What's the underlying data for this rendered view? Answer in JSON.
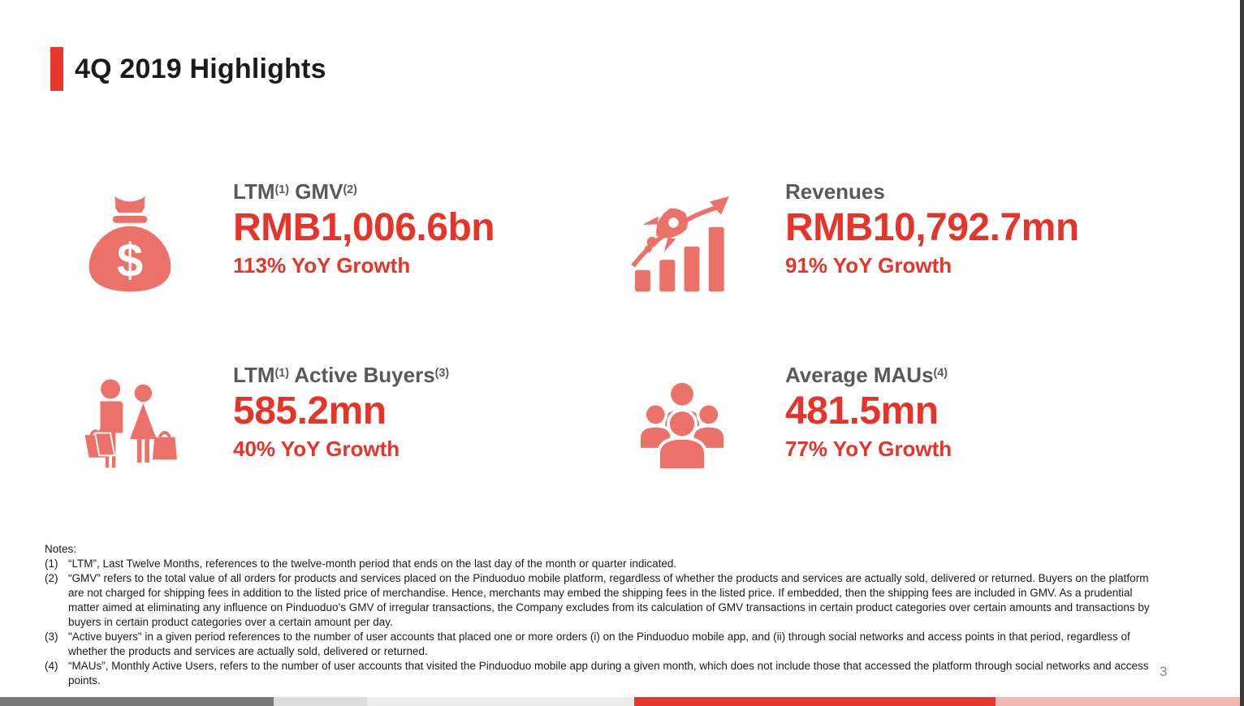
{
  "slide": {
    "title": "4Q 2019 Highlights",
    "page_number": "3"
  },
  "colors": {
    "accent_red": "#e8372c",
    "metric_red": "#e5352b",
    "icon_salmon": "#ec7168",
    "label_gray": "#595959",
    "footer_bar_segments": [
      "#787878",
      "#dcdcdc",
      "#ececec",
      "#e8372c",
      "#f1b7b2"
    ]
  },
  "cards": [
    {
      "icon": "money-bag-icon",
      "label_parts": [
        {
          "t": "LTM"
        },
        {
          "s": "(1)"
        },
        {
          "t": " GMV"
        },
        {
          "s": "(2)"
        }
      ],
      "value": "RMB1,006.6bn",
      "growth": "113% YoY Growth"
    },
    {
      "icon": "rocket-growth-chart-icon",
      "label_parts": [
        {
          "t": "Revenues"
        }
      ],
      "value": "RMB10,792.7mn",
      "growth": "91% YoY Growth"
    },
    {
      "icon": "shoppers-icon",
      "label_parts": [
        {
          "t": "LTM"
        },
        {
          "s": "(1)"
        },
        {
          "t": " Active Buyers"
        },
        {
          "s": "(3)"
        }
      ],
      "value": "585.2mn",
      "growth": "40% YoY Growth"
    },
    {
      "icon": "crowd-icon",
      "label_parts": [
        {
          "t": "Average MAUs"
        },
        {
          "s": "(4)"
        }
      ],
      "value": "481.5mn",
      "growth": "77% YoY Growth"
    }
  ],
  "notes": {
    "heading": "Notes:",
    "items": [
      {
        "num": "(1)",
        "text": "“LTM”, Last Twelve Months, references to the twelve-month period that ends on the last day of the month or quarter indicated."
      },
      {
        "num": "(2)",
        "text": "“GMV” refers to the total value of all orders for products and services placed on the Pinduoduo mobile platform, regardless of whether the products and services are actually sold, delivered or returned. Buyers on the platform are not charged for shipping fees in addition to the listed price of merchandise. Hence, merchants may embed the shipping fees in the listed price. If embedded, then the shipping fees are included in GMV. As a prudential matter aimed at eliminating any influence on Pinduoduo’s GMV of irregular transactions, the Company excludes from its calculation of GMV transactions in certain product categories over certain amounts and transactions by buyers in certain product categories over a certain amount per day."
      },
      {
        "num": "(3)",
        "text": "\"Active buyers\" in a given period references to the number of user accounts that placed one or more orders (i) on the Pinduoduo mobile app, and (ii) through social networks and access points in that period, regardless of whether the products and services are actually sold, delivered or returned."
      },
      {
        "num": "(4)",
        "text": "“MAUs”, Monthly Active Users, refers to the number of user accounts that visited the Pinduoduo mobile app during a given month, which does not include those that accessed the platform through social networks and access points."
      }
    ]
  }
}
